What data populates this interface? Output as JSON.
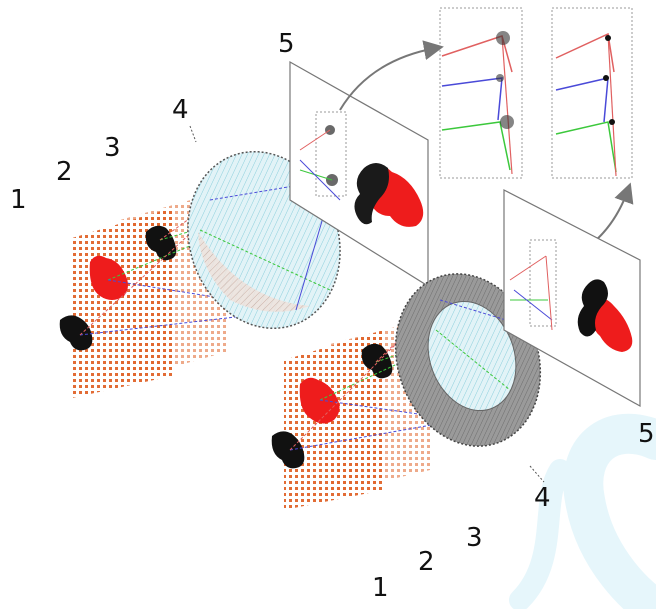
{
  "labels": {
    "top_1": "1",
    "top_2": "2",
    "top_3": "3",
    "top_4": "4",
    "top_5": "5",
    "bottom_1": "1",
    "bottom_2": "2",
    "bottom_3": "3",
    "bottom_4": "4",
    "bottom_5": "5"
  },
  "colors": {
    "grid_dots": "#e0642a",
    "object_red": "#ee1c1c",
    "object_dark": "#111111",
    "ray_red": "#e06060",
    "ray_green": "#3cc83c",
    "ray_blue": "#4a4ad8",
    "lens_fill": "#cfe8ee",
    "lens_shade": "#e8cfc4",
    "ring_gray": "#8c8c8c",
    "watermark": "#e6f6fb",
    "panel_border": "#777777"
  }
}
